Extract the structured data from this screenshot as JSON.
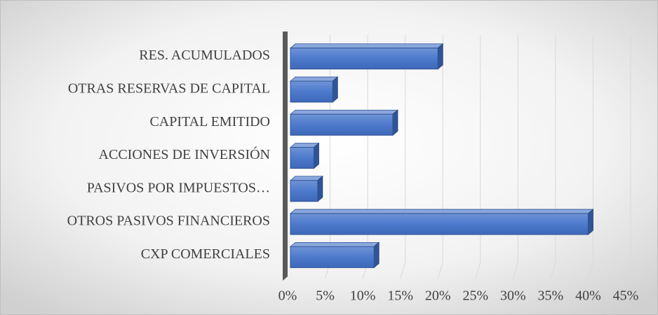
{
  "chart_data": {
    "type": "bar3d_horizontal",
    "categories": [
      "RES. ACUMULADOS",
      "OTRAS RESERVAS DE CAPITAL",
      "CAPITAL EMITIDO",
      "ACCIONES DE INVERSIÓN",
      "PASIVOS POR IMPUESTOS…",
      "OTROS PASIVOS FINANCIEROS",
      "CXP COMERCIALES"
    ],
    "values": [
      20,
      6,
      14,
      3.5,
      4,
      40,
      11.5
    ],
    "color": "#4472c4",
    "xlim": [
      0,
      45
    ],
    "xticks": [
      {
        "value": 0,
        "label": "0%"
      },
      {
        "value": 5,
        "label": "5%"
      },
      {
        "value": 10,
        "label": "10%"
      },
      {
        "value": 15,
        "label": "15%"
      },
      {
        "value": 20,
        "label": "20%"
      },
      {
        "value": 25,
        "label": "25%"
      },
      {
        "value": 30,
        "label": "30%"
      },
      {
        "value": 35,
        "label": "35%"
      },
      {
        "value": 40,
        "label": "40%"
      },
      {
        "value": 45,
        "label": "45%"
      }
    ],
    "grid": true
  }
}
